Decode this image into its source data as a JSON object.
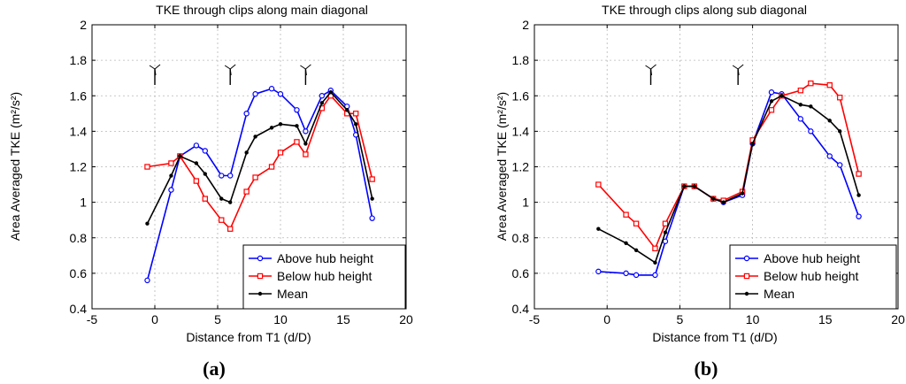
{
  "chart_data": [
    {
      "type": "line",
      "panel_label": "(a)",
      "title": "TKE through clips along main diagonal",
      "xlabel": "Distance from T1 (d/D)",
      "ylabel": "Area Averaged TKE (m²/s²)",
      "xlim": [
        -5,
        20
      ],
      "ylim": [
        0.4,
        2
      ],
      "xticks": [
        -5,
        0,
        5,
        10,
        15,
        20
      ],
      "yticks": [
        0.4,
        0.6,
        0.8,
        1,
        1.2,
        1.4,
        1.6,
        1.8,
        2
      ],
      "xtick_labels": [
        "-5",
        "0",
        "5",
        "10",
        "15",
        "20"
      ],
      "ytick_labels": [
        "0.4",
        "0.6",
        "0.8",
        "1",
        "1.2",
        "1.4",
        "1.6",
        "1.8",
        "2"
      ],
      "grid": true,
      "legend_position": "bottom-right",
      "turbine_markers_x": [
        0,
        6,
        12
      ],
      "series": [
        {
          "name": "Above hub height",
          "color": "#0000ff",
          "marker": "circle",
          "x": [
            -0.6,
            1.3,
            2,
            3.3,
            4,
            5.3,
            6,
            7.3,
            8,
            9.3,
            10,
            11.3,
            12,
            13.3,
            14,
            15.3,
            16,
            17.3
          ],
          "y": [
            0.56,
            1.07,
            1.26,
            1.32,
            1.29,
            1.15,
            1.15,
            1.5,
            1.61,
            1.64,
            1.61,
            1.52,
            1.4,
            1.6,
            1.63,
            1.54,
            1.38,
            0.91
          ]
        },
        {
          "name": "Below hub height",
          "color": "#ff0000",
          "marker": "square",
          "x": [
            -0.6,
            1.3,
            2,
            3.3,
            4,
            5.3,
            6,
            7.3,
            8,
            9.3,
            10,
            11.3,
            12,
            13.3,
            14,
            15.3,
            16,
            17.3
          ],
          "y": [
            1.2,
            1.22,
            1.26,
            1.12,
            1.02,
            0.9,
            0.85,
            1.06,
            1.14,
            1.2,
            1.28,
            1.34,
            1.27,
            1.53,
            1.6,
            1.5,
            1.5,
            1.13
          ]
        },
        {
          "name": "Mean",
          "color": "#000000",
          "marker": "dot",
          "x": [
            -0.6,
            1.3,
            2,
            3.3,
            4,
            5.3,
            6,
            7.3,
            8,
            9.3,
            10,
            11.3,
            12,
            13.3,
            14,
            15.3,
            16,
            17.3
          ],
          "y": [
            0.88,
            1.15,
            1.26,
            1.22,
            1.16,
            1.02,
            1.0,
            1.28,
            1.37,
            1.42,
            1.44,
            1.43,
            1.33,
            1.56,
            1.62,
            1.52,
            1.44,
            1.02
          ]
        }
      ]
    },
    {
      "type": "line",
      "panel_label": "(b)",
      "title": "TKE through clips along sub diagonal",
      "xlabel": "Distance from T1 (d/D)",
      "ylabel": "Area Averaged TKE (m²/s²)",
      "xlim": [
        -5,
        20
      ],
      "ylim": [
        0.4,
        2
      ],
      "xticks": [
        -5,
        0,
        5,
        10,
        15,
        20
      ],
      "yticks": [
        0.4,
        0.6,
        0.8,
        1,
        1.2,
        1.4,
        1.6,
        1.8,
        2
      ],
      "xtick_labels": [
        "-5",
        "0",
        "5",
        "10",
        "15",
        "20"
      ],
      "ytick_labels": [
        "0.4",
        "0.6",
        "0.8",
        "1",
        "1.2",
        "1.4",
        "1.6",
        "1.8",
        "2"
      ],
      "grid": true,
      "legend_position": "bottom-right",
      "turbine_markers_x": [
        3,
        9
      ],
      "series": [
        {
          "name": "Above hub height",
          "color": "#0000ff",
          "marker": "circle",
          "x": [
            -0.6,
            1.3,
            2,
            3.3,
            4,
            5.3,
            6,
            7.3,
            8,
            9.3,
            10,
            11.3,
            12,
            13.3,
            14,
            15.3,
            16,
            17.3
          ],
          "y": [
            0.61,
            0.6,
            0.59,
            0.59,
            0.78,
            1.09,
            1.09,
            1.02,
            1.0,
            1.04,
            1.33,
            1.62,
            1.61,
            1.47,
            1.4,
            1.26,
            1.21,
            0.92
          ]
        },
        {
          "name": "Below hub height",
          "color": "#ff0000",
          "marker": "square",
          "x": [
            -0.6,
            1.3,
            2,
            3.3,
            4,
            5.3,
            6,
            7.3,
            8,
            9.3,
            10,
            11.3,
            12,
            13.3,
            14,
            15.3,
            16,
            17.3
          ],
          "y": [
            1.1,
            0.93,
            0.88,
            0.74,
            0.88,
            1.09,
            1.09,
            1.02,
            1.01,
            1.06,
            1.35,
            1.52,
            1.6,
            1.63,
            1.67,
            1.66,
            1.59,
            1.16
          ]
        },
        {
          "name": "Mean",
          "color": "#000000",
          "marker": "dot",
          "x": [
            -0.6,
            1.3,
            2,
            3.3,
            4,
            5.3,
            6,
            7.3,
            8,
            9.3,
            10,
            11.3,
            12,
            13.3,
            14,
            15.3,
            16,
            17.3
          ],
          "y": [
            0.85,
            0.77,
            0.73,
            0.66,
            0.83,
            1.09,
            1.09,
            1.02,
            1.0,
            1.05,
            1.33,
            1.57,
            1.6,
            1.55,
            1.54,
            1.46,
            1.4,
            1.04
          ]
        }
      ]
    }
  ]
}
